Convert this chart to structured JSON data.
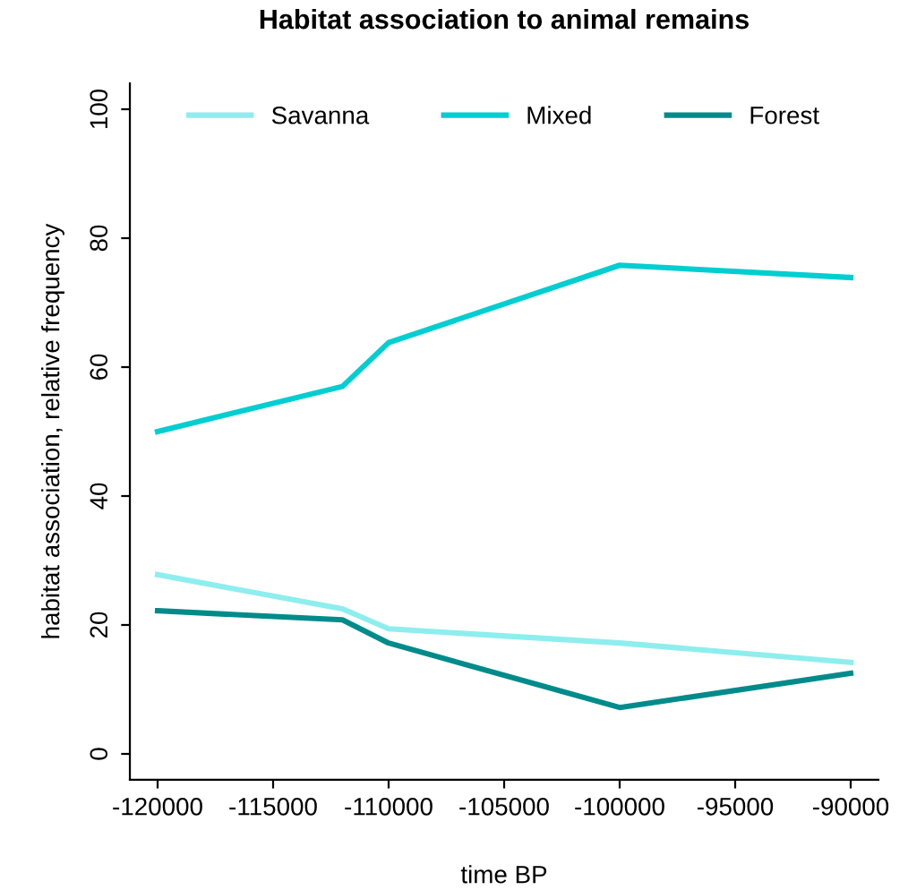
{
  "chart_data": {
    "type": "line",
    "title": "Habitat association to animal remains",
    "xlabel": "time BP",
    "ylabel": "habitat association, relative frequency",
    "x": [
      -120000,
      -112000,
      -110000,
      -100000,
      -90000
    ],
    "series": [
      {
        "name": "Savanna",
        "color": "#8eeeee",
        "values": [
          27.8,
          22.5,
          19.4,
          17.2,
          14.2
        ]
      },
      {
        "name": "Mixed",
        "color": "#00ced1",
        "values": [
          50,
          57,
          63.8,
          75.8,
          73.9
        ]
      },
      {
        "name": "Forest",
        "color": "#008b8b",
        "values": [
          22.2,
          20.8,
          17.2,
          7.2,
          12.5
        ]
      }
    ],
    "xlim": [
      -121200,
      -88800
    ],
    "ylim": [
      -4,
      104
    ],
    "xticks": [
      -120000,
      -115000,
      -110000,
      -105000,
      -100000,
      -95000,
      -90000
    ],
    "yticks": [
      0,
      20,
      40,
      60,
      80,
      100
    ],
    "legend": "top",
    "grid": false,
    "marker": "none",
    "line_style": "solid"
  }
}
